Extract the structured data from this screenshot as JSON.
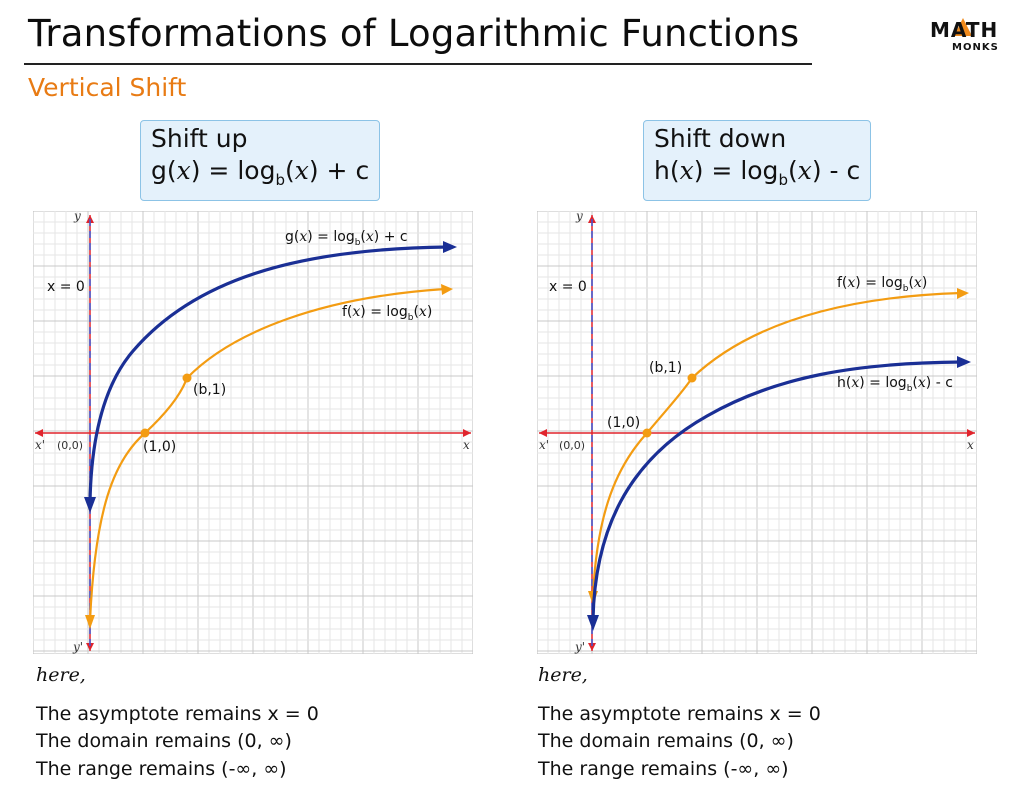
{
  "header": {
    "title": "Transformations of Logarithmic Functions",
    "subtitle": "Vertical Shift",
    "logo_top": "MATH",
    "logo_bottom": "MONKS"
  },
  "colors": {
    "orange": "#f39c12",
    "blue": "#1a2f95",
    "axis_red": "#e0242c",
    "asymptote_blue": "#3d5ad6",
    "grid": "#d9d9d9",
    "box_bg": "#e4f1fb",
    "box_border": "#8cc3e6"
  },
  "left": {
    "box_line1": "Shift up",
    "box_fn": "g(",
    "box_var": "x",
    "box_mid": ") = log",
    "box_sub": "b",
    "box_open": "(",
    "box_var2": "x",
    "box_end": ") + c",
    "graph": {
      "y_label": "y",
      "y_neg_label": "y'",
      "x_label": "x",
      "x_neg_label": "x'",
      "origin": "(0,0)",
      "asymptote_label": "x = 0",
      "point_1_0": "(1,0)",
      "point_b_1": "(b,1)",
      "shifted_label": "g(x) = log_b(x) + c",
      "parent_label": "f(x) = log_b(x)"
    },
    "here": "here,",
    "notes": [
      "The asymptote remains x = 0",
      "The domain remains (0, ∞)",
      "The range remains (-∞, ∞)"
    ]
  },
  "right": {
    "box_line1": "Shift down",
    "box_fn": "h(",
    "box_var": "x",
    "box_mid": ") = log",
    "box_sub": "b",
    "box_open": "(",
    "box_var2": "x",
    "box_end": ") - c",
    "graph": {
      "y_label": "y",
      "y_neg_label": "y'",
      "x_label": "x",
      "x_neg_label": "x'",
      "origin": "(0,0)",
      "asymptote_label": "x = 0",
      "point_1_0": "(1,0)",
      "point_b_1": "(b,1)",
      "shifted_label": "h(x) = log_b(x) - c",
      "parent_label": "f(x) = log_b(x)"
    },
    "here": "here,",
    "notes": [
      "The asymptote remains x = 0",
      "The domain remains (0, ∞)",
      "The range remains (-∞, ∞)"
    ]
  }
}
